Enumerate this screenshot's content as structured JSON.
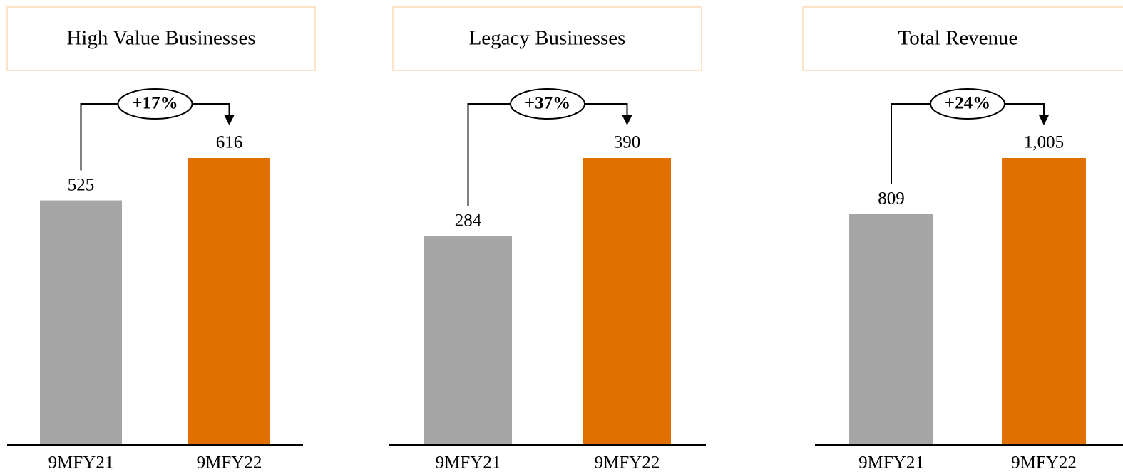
{
  "chart_data": [
    {
      "type": "bar",
      "title": "High Value Businesses",
      "categories": [
        "9MFY21",
        "9MFY22"
      ],
      "values": [
        525,
        616
      ],
      "colors": [
        "#a6a6a6",
        "#e07000"
      ],
      "ylim": [
        0,
        616
      ],
      "annotation": "+17%"
    },
    {
      "type": "bar",
      "title": "Legacy Businesses",
      "categories": [
        "9MFY21",
        "9MFY22"
      ],
      "values": [
        284,
        390
      ],
      "colors": [
        "#a6a6a6",
        "#e07000"
      ],
      "ylim": [
        0,
        390
      ],
      "annotation": "+37%"
    },
    {
      "type": "bar",
      "title": "Total Revenue",
      "categories": [
        "9MFY21",
        "9MFY22"
      ],
      "values": [
        809,
        1005
      ],
      "value_labels": [
        "809",
        "1,005"
      ],
      "colors": [
        "#a6a6a6",
        "#e07000"
      ],
      "ylim": [
        0,
        1005
      ],
      "annotation": "+24%"
    }
  ]
}
